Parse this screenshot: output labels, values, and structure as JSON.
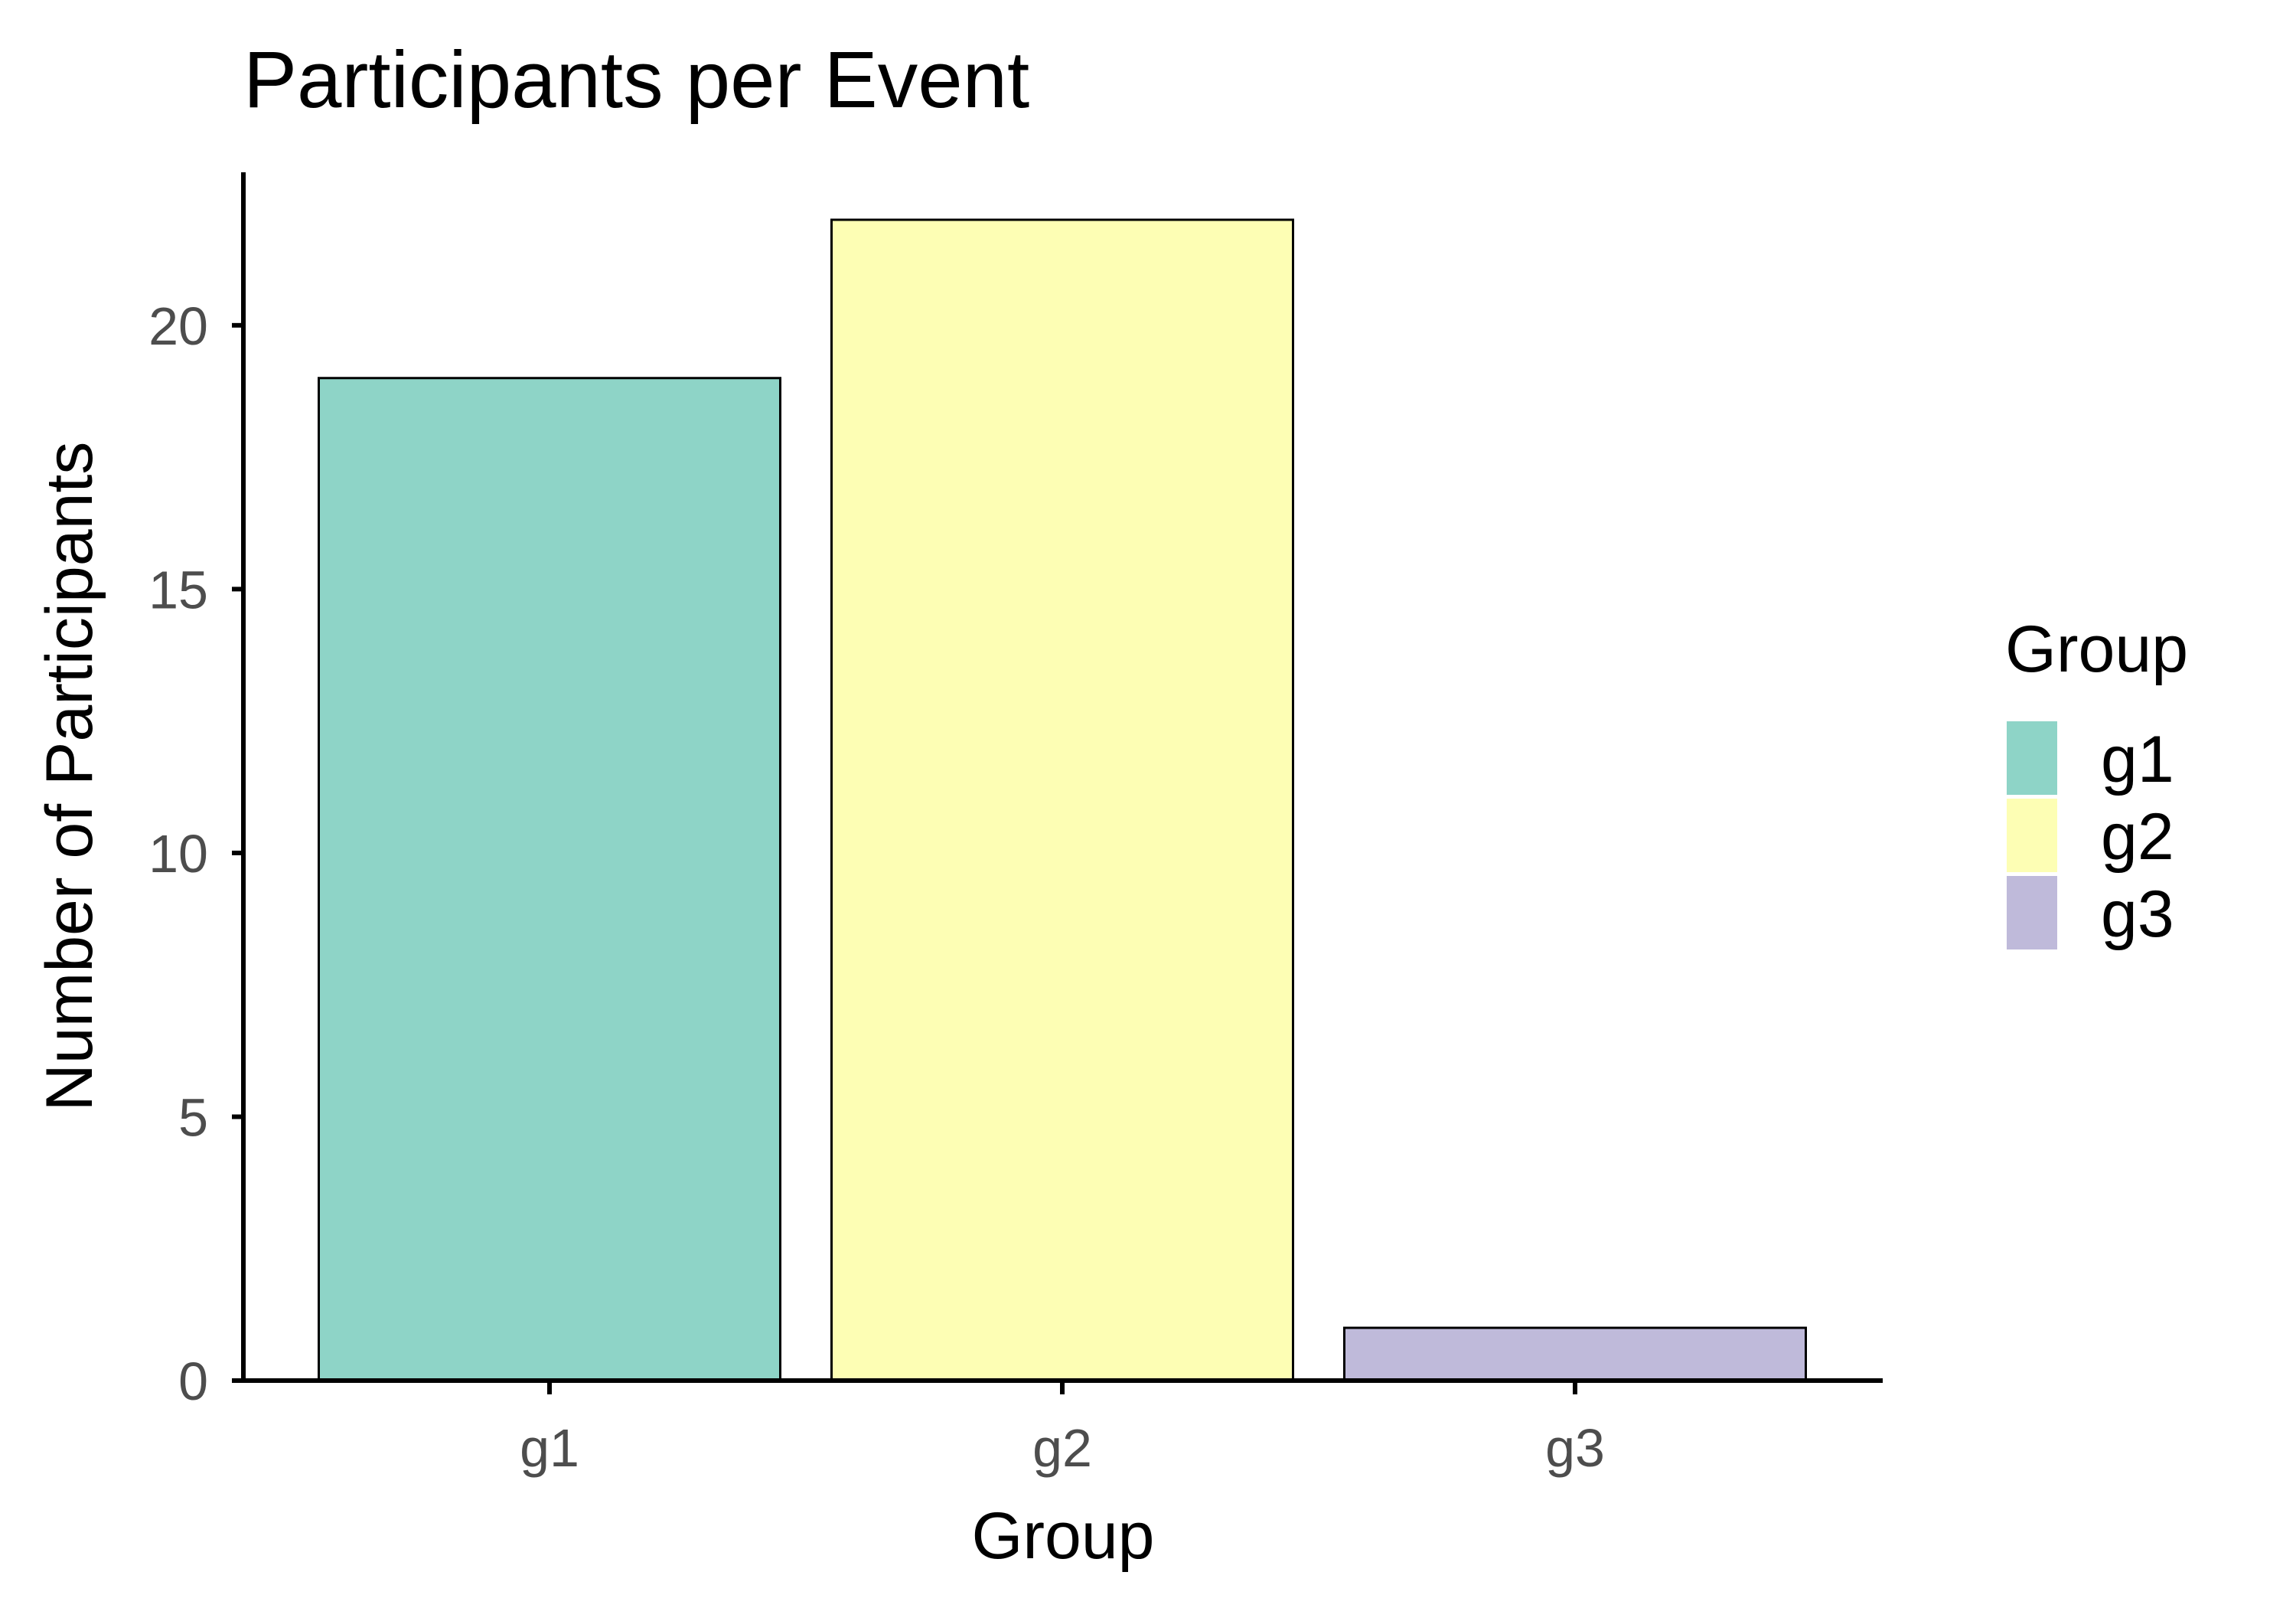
{
  "chart_data": {
    "type": "bar",
    "title": "Participants per Event",
    "xlabel": "Group",
    "ylabel": "Number of Participants",
    "categories": [
      "g1",
      "g2",
      "g3"
    ],
    "values": [
      19,
      22,
      1
    ],
    "colors": [
      "#8ED4C7",
      "#FDFEB4",
      "#BFBADA"
    ],
    "bar_outline": "#000000",
    "ylim": [
      0,
      22.9
    ],
    "yticks": [
      0,
      5,
      10,
      15,
      20
    ],
    "grid": false,
    "legend": {
      "title": "Group",
      "position": "right",
      "entries": [
        "g1",
        "g2",
        "g3"
      ]
    }
  }
}
